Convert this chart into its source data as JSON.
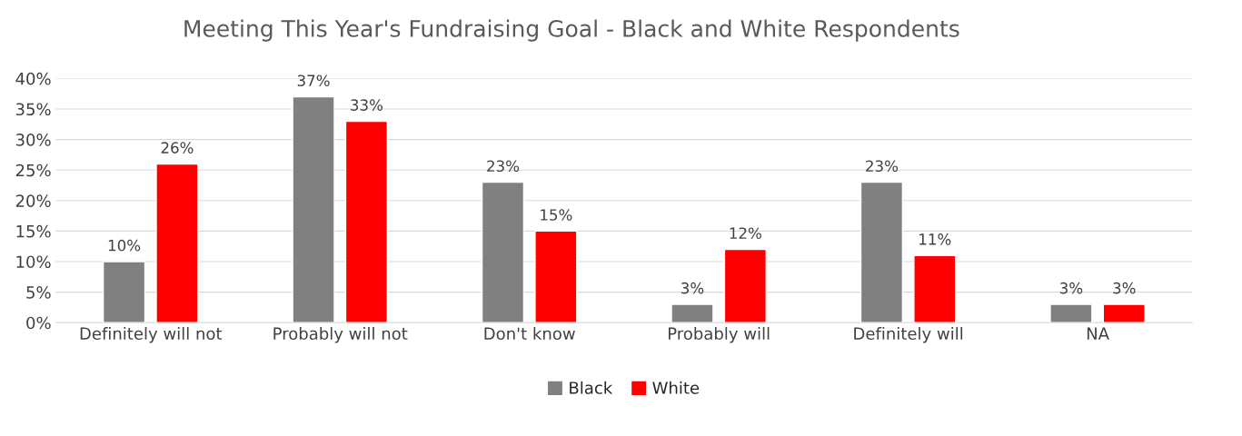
{
  "chart_data": {
    "type": "bar",
    "title": "Meeting This Year's Fundraising Goal - Black and White Respondents",
    "categories": [
      "Definitely will not",
      "Probably will not",
      "Don't know",
      "Probably will",
      "Definitely will",
      "NA"
    ],
    "series": [
      {
        "name": "Black",
        "color": "#808080",
        "values": [
          10,
          37,
          23,
          3,
          23,
          3
        ],
        "value_labels": [
          "10%",
          "37%",
          "23%",
          "3%",
          "23%",
          "3%"
        ]
      },
      {
        "name": "White",
        "color": "#ff0000",
        "values": [
          26,
          33,
          15,
          12,
          11,
          3
        ],
        "value_labels": [
          "26%",
          "33%",
          "15%",
          "12%",
          "11%",
          "3%"
        ]
      }
    ],
    "ylim": [
      0,
      40
    ],
    "yticks": [
      {
        "value": 0,
        "label": "0%"
      },
      {
        "value": 5,
        "label": "5%"
      },
      {
        "value": 10,
        "label": "10%"
      },
      {
        "value": 15,
        "label": "15%"
      },
      {
        "value": 20,
        "label": "20%"
      },
      {
        "value": 25,
        "label": "25%"
      },
      {
        "value": 30,
        "label": "30%"
      },
      {
        "value": 35,
        "label": "35%"
      },
      {
        "value": 40,
        "label": "40%"
      }
    ],
    "grid": "y",
    "legend": "bottom"
  }
}
